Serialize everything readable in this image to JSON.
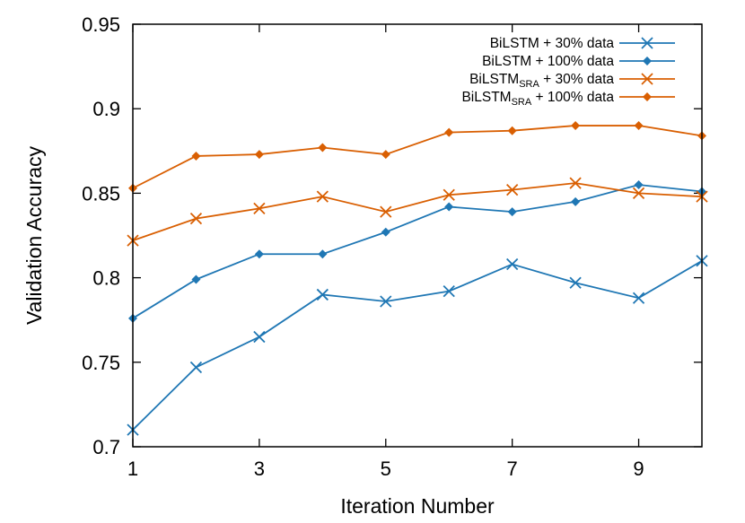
{
  "chart_data": {
    "type": "line",
    "title": "",
    "xlabel": "Iteration Number",
    "ylabel": "Validation Accuracy",
    "xlim": [
      1,
      10
    ],
    "ylim": [
      0.7,
      0.95
    ],
    "x": [
      1,
      2,
      3,
      4,
      5,
      6,
      7,
      8,
      9,
      10
    ],
    "xticks": [
      1,
      3,
      5,
      7,
      9
    ],
    "xtick_labels": [
      "1",
      "3",
      "5",
      "7",
      "9"
    ],
    "yticks": [
      0.7,
      0.75,
      0.8,
      0.85,
      0.9,
      0.95
    ],
    "ytick_labels": [
      "0.7",
      "0.75",
      "0.8",
      "0.85",
      "0.9",
      "0.95"
    ],
    "grid": false,
    "legend_position": "top-right",
    "series": [
      {
        "name": "BiLSTM + 30% data",
        "label_base": "BiLSTM",
        "label_sub": "",
        "label_rest": " + 30% data",
        "color": "#1f77b4",
        "marker": "x",
        "values": [
          0.71,
          0.747,
          0.765,
          0.79,
          0.786,
          0.792,
          0.808,
          0.797,
          0.788,
          0.81
        ]
      },
      {
        "name": "BiLSTM + 100% data",
        "label_base": "BiLSTM",
        "label_sub": "",
        "label_rest": " + 100% data",
        "color": "#1f77b4",
        "marker": "diamond",
        "values": [
          0.776,
          0.799,
          0.814,
          0.814,
          0.827,
          0.842,
          0.839,
          0.845,
          0.855,
          0.851
        ]
      },
      {
        "name": "BiLSTM_SRA + 30% data",
        "label_base": "BiLSTM",
        "label_sub": "SRA",
        "label_rest": " + 30% data",
        "color": "#d95f02",
        "marker": "x",
        "values": [
          0.822,
          0.835,
          0.841,
          0.848,
          0.839,
          0.849,
          0.852,
          0.856,
          0.85,
          0.848
        ]
      },
      {
        "name": "BiLSTM_SRA + 100% data",
        "label_base": "BiLSTM",
        "label_sub": "SRA",
        "label_rest": " + 100% data",
        "color": "#d95f02",
        "marker": "diamond",
        "values": [
          0.853,
          0.872,
          0.873,
          0.877,
          0.873,
          0.886,
          0.887,
          0.89,
          0.89,
          0.884
        ]
      }
    ]
  }
}
